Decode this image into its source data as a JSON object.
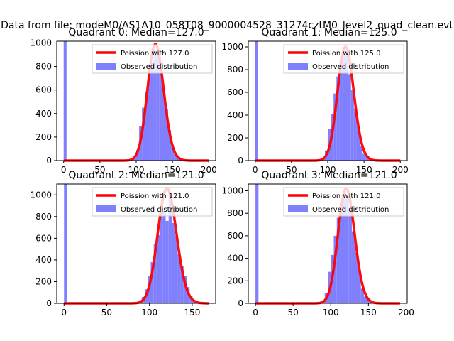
{
  "suptitle": "Data from file: modeM0/AS1A10_058T08_9000004528_31274cztM0_level2_quad_clean.evt",
  "colors": {
    "bars": "#8080ff",
    "poisson": "#ff0000",
    "axes": "#000000",
    "background": "#ffffff"
  },
  "chart_data": [
    {
      "type": "bar",
      "title": "Quadrant 0: Median=127.0",
      "xlim": [
        -9.5,
        209.5
      ],
      "ylim": [
        0,
        1015
      ],
      "xticks": [
        0,
        50,
        100,
        150,
        200
      ],
      "yticks": [
        0,
        200,
        400,
        600,
        800,
        1000
      ],
      "bin_width": 4,
      "bins": [
        {
          "x": 0,
          "count": 1015
        },
        {
          "x": 96,
          "count": 20
        },
        {
          "x": 100,
          "count": 90
        },
        {
          "x": 104,
          "count": 290
        },
        {
          "x": 108,
          "count": 450
        },
        {
          "x": 112,
          "count": 580
        },
        {
          "x": 116,
          "count": 740
        },
        {
          "x": 120,
          "count": 830
        },
        {
          "x": 124,
          "count": 940
        },
        {
          "x": 128,
          "count": 900
        },
        {
          "x": 132,
          "count": 780
        },
        {
          "x": 136,
          "count": 620
        },
        {
          "x": 140,
          "count": 440
        },
        {
          "x": 144,
          "count": 260
        },
        {
          "x": 148,
          "count": 130
        },
        {
          "x": 152,
          "count": 60
        },
        {
          "x": 156,
          "count": 40
        },
        {
          "x": 160,
          "count": 15
        }
      ],
      "curve": {
        "type": "poisson",
        "mean": 127.0,
        "peak": 990,
        "x_start": 0,
        "x_end": 200
      },
      "legend": [
        "Poission with 127.0",
        "Observed distribution"
      ],
      "legend_position": "upper right"
    },
    {
      "type": "bar",
      "title": "Quadrant 1: Median=125.0",
      "xlim": [
        -9.5,
        209.5
      ],
      "ylim": [
        0,
        1050
      ],
      "xticks": [
        0,
        50,
        100,
        150,
        200
      ],
      "yticks": [
        0,
        200,
        400,
        600,
        800,
        1000
      ],
      "bin_width": 4,
      "bins": [
        {
          "x": 0,
          "count": 1050
        },
        {
          "x": 92,
          "count": 20
        },
        {
          "x": 96,
          "count": 90
        },
        {
          "x": 100,
          "count": 280
        },
        {
          "x": 104,
          "count": 410
        },
        {
          "x": 108,
          "count": 590
        },
        {
          "x": 112,
          "count": 740
        },
        {
          "x": 116,
          "count": 880
        },
        {
          "x": 120,
          "count": 1000
        },
        {
          "x": 124,
          "count": 960
        },
        {
          "x": 128,
          "count": 760
        },
        {
          "x": 132,
          "count": 620
        },
        {
          "x": 136,
          "count": 460
        },
        {
          "x": 140,
          "count": 300
        },
        {
          "x": 144,
          "count": 130
        },
        {
          "x": 148,
          "count": 60
        },
        {
          "x": 152,
          "count": 40
        },
        {
          "x": 156,
          "count": 15
        }
      ],
      "curve": {
        "type": "poisson",
        "mean": 125.0,
        "peak": 1000,
        "x_start": 0,
        "x_end": 200
      },
      "legend": [
        "Poission with 125.0",
        "Observed distribution"
      ],
      "legend_position": "upper right"
    },
    {
      "type": "bar",
      "title": "Quadrant 2: Median=121.0",
      "xlim": [
        -8.5,
        177.5
      ],
      "ylim": [
        0,
        1100
      ],
      "xticks": [
        0,
        50,
        100,
        150
      ],
      "yticks": [
        0,
        200,
        400,
        600,
        800,
        1000
      ],
      "bin_width": 3.5,
      "bins": [
        {
          "x": 0,
          "count": 1100
        },
        {
          "x": 87.5,
          "count": 20
        },
        {
          "x": 91,
          "count": 60
        },
        {
          "x": 94.5,
          "count": 130
        },
        {
          "x": 98,
          "count": 250
        },
        {
          "x": 101.5,
          "count": 380
        },
        {
          "x": 105,
          "count": 550
        },
        {
          "x": 108.5,
          "count": 630
        },
        {
          "x": 112,
          "count": 900
        },
        {
          "x": 115.5,
          "count": 850
        },
        {
          "x": 119,
          "count": 760
        },
        {
          "x": 122.5,
          "count": 1000
        },
        {
          "x": 126,
          "count": 740
        },
        {
          "x": 129.5,
          "count": 620
        },
        {
          "x": 133,
          "count": 460
        },
        {
          "x": 136.5,
          "count": 340
        },
        {
          "x": 140,
          "count": 250
        },
        {
          "x": 143.5,
          "count": 150
        },
        {
          "x": 147,
          "count": 70
        },
        {
          "x": 150.5,
          "count": 30
        },
        {
          "x": 154,
          "count": 15
        }
      ],
      "curve": {
        "type": "poisson",
        "mean": 121.0,
        "peak": 1060,
        "x_start": 0,
        "x_end": 170
      },
      "legend": [
        "Poission with 121.0",
        "Observed distribution"
      ],
      "legend_position": "upper right"
    },
    {
      "type": "bar",
      "title": "Quadrant 3: Median=121.0",
      "xlim": [
        -9.5,
        201.5
      ],
      "ylim": [
        0,
        1060
      ],
      "xticks": [
        0,
        50,
        100,
        150,
        200
      ],
      "yticks": [
        0,
        200,
        400,
        600,
        800,
        1000
      ],
      "bin_width": 4,
      "bins": [
        {
          "x": 0,
          "count": 1060
        },
        {
          "x": 88,
          "count": 20
        },
        {
          "x": 92,
          "count": 90
        },
        {
          "x": 96,
          "count": 280
        },
        {
          "x": 100,
          "count": 430
        },
        {
          "x": 104,
          "count": 600
        },
        {
          "x": 108,
          "count": 760
        },
        {
          "x": 112,
          "count": 880
        },
        {
          "x": 116,
          "count": 1000
        },
        {
          "x": 120,
          "count": 950
        },
        {
          "x": 124,
          "count": 820
        },
        {
          "x": 128,
          "count": 640
        },
        {
          "x": 132,
          "count": 450
        },
        {
          "x": 136,
          "count": 290
        },
        {
          "x": 140,
          "count": 130
        },
        {
          "x": 144,
          "count": 60
        },
        {
          "x": 148,
          "count": 40
        },
        {
          "x": 152,
          "count": 15
        }
      ],
      "curve": {
        "type": "poisson",
        "mean": 121.0,
        "peak": 1020,
        "x_start": 0,
        "x_end": 192
      },
      "legend": [
        "Poission with 121.0",
        "Observed distribution"
      ],
      "legend_position": "upper right"
    }
  ]
}
